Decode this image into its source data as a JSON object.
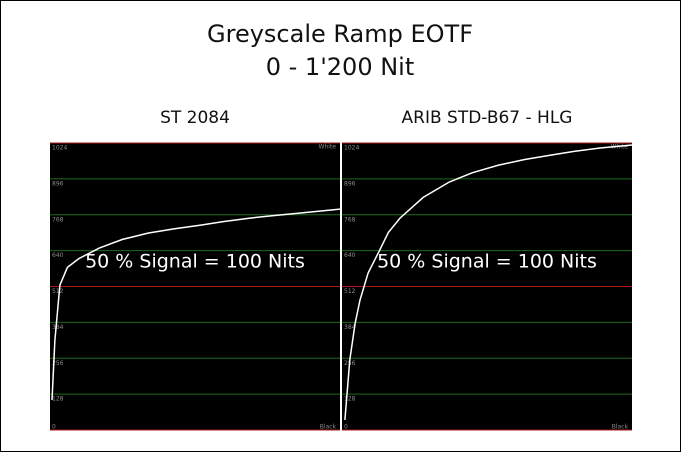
{
  "header": {
    "title": "Greyscale Ramp EOTF",
    "subtitle": "0 - 1'200 Nit"
  },
  "chart_data": [
    {
      "type": "line",
      "title": "ST 2084",
      "annotation": "50 % Signal = 100 Nits",
      "top_label": "White",
      "bottom_label": "Black",
      "x": [
        0.7,
        1.7,
        3.4,
        6,
        10,
        17,
        25,
        34,
        43,
        52,
        60,
        69,
        77,
        86,
        93,
        100
      ],
      "values": [
        107,
        321,
        517,
        580,
        612,
        649,
        680,
        703,
        718,
        731,
        744,
        756,
        765,
        774,
        781,
        788
      ],
      "color": "#ffffff",
      "background": "#000000",
      "xlim": [
        0,
        100
      ],
      "ylim": [
        0,
        1024
      ],
      "yticks": [
        0,
        128,
        256,
        384,
        512,
        640,
        768,
        896,
        1024
      ],
      "grid_colors": [
        "#b01818",
        "#1e6a1e",
        "#1e6a1e",
        "#1e6a1e",
        "#b01818",
        "#1e6a1e",
        "#1e6a1e",
        "#1e6a1e",
        "#b01818"
      ]
    },
    {
      "type": "line",
      "title": "ARIB STD-B67 - HLG",
      "annotation": "50 % Signal = 100 Nits",
      "top_label": "White",
      "bottom_label": "Black",
      "x": [
        1,
        2.7,
        4.5,
        6.2,
        9,
        13,
        16,
        20,
        28,
        37,
        45,
        54,
        63,
        72,
        80,
        89,
        100
      ],
      "values": [
        36,
        250,
        380,
        464,
        560,
        642,
        705,
        756,
        830,
        885,
        918,
        945,
        965,
        981,
        994,
        1006,
        1017
      ],
      "color": "#ffffff",
      "background": "#000000",
      "xlim": [
        0,
        100
      ],
      "ylim": [
        0,
        1024
      ],
      "yticks": [
        0,
        128,
        256,
        384,
        512,
        640,
        768,
        896,
        1024
      ],
      "grid_colors": [
        "#b01818",
        "#1e6a1e",
        "#1e6a1e",
        "#1e6a1e",
        "#b01818",
        "#1e6a1e",
        "#1e6a1e",
        "#1e6a1e",
        "#b01818"
      ]
    }
  ]
}
